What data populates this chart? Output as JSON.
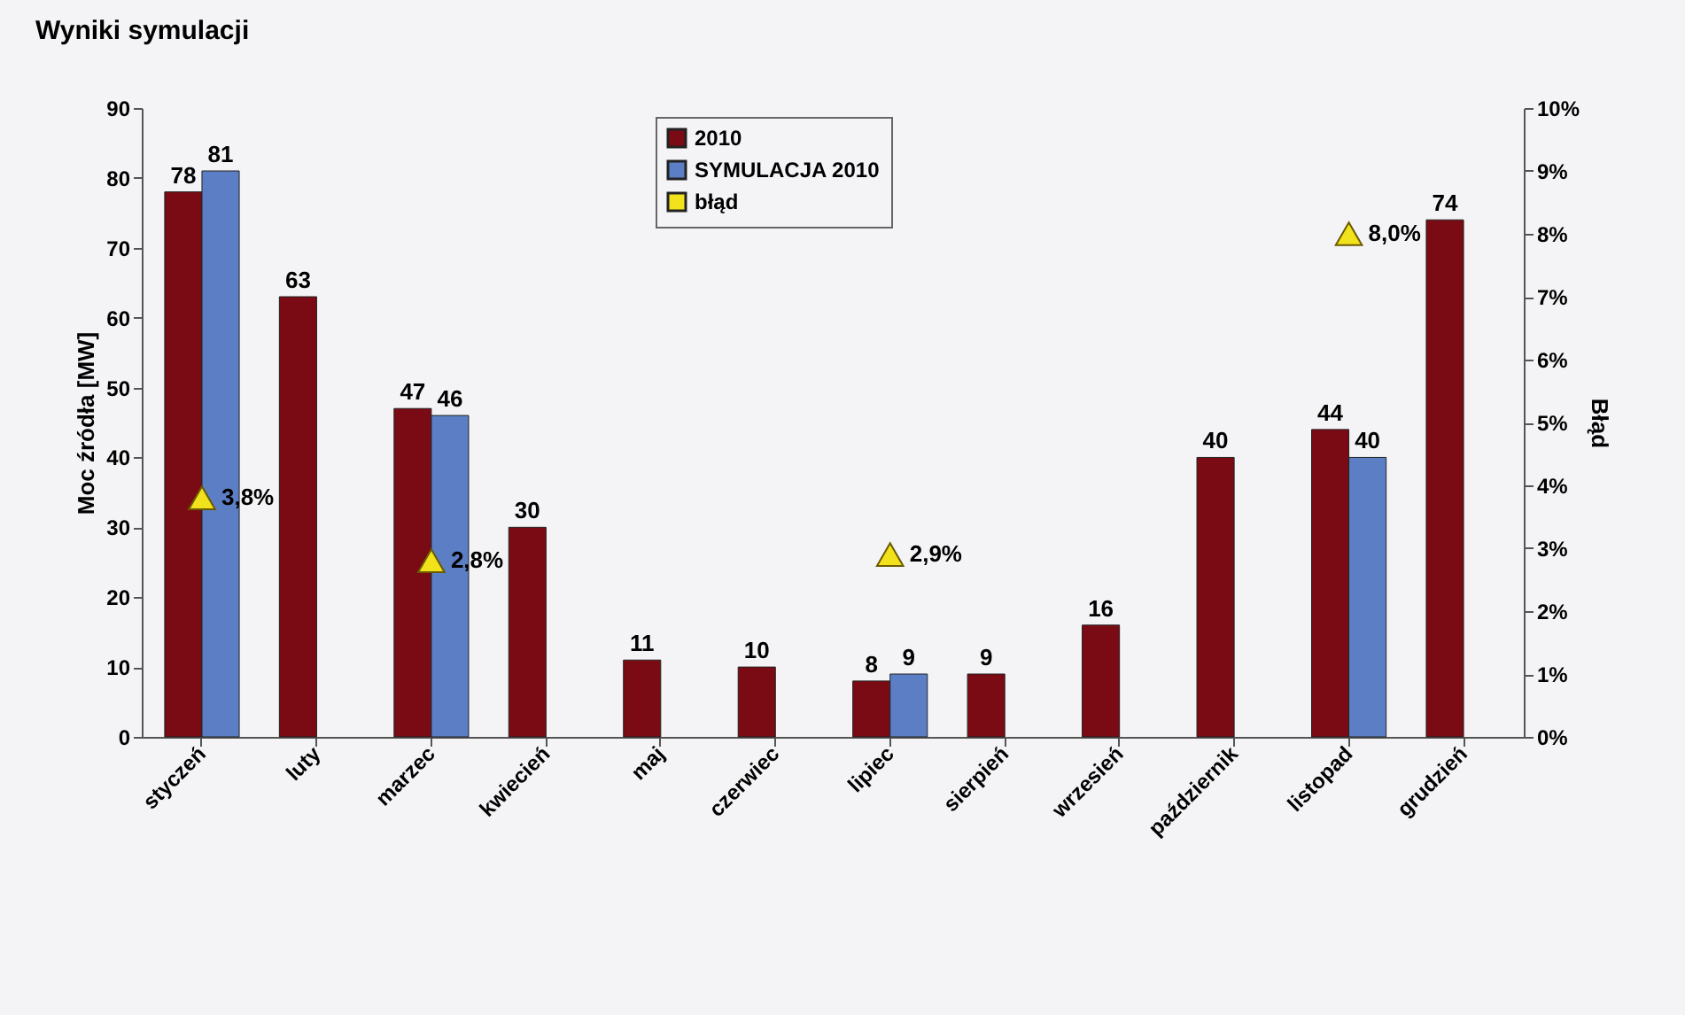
{
  "chart_data": {
    "type": "bar",
    "title": "Wyniki symulacji",
    "ylabel": "Moc źródła [MW]",
    "y2label": "Błąd",
    "categories": [
      "styczeń",
      "luty",
      "marzec",
      "kwiecień",
      "maj",
      "czerwiec",
      "lipiec",
      "sierpień",
      "wrzesień",
      "październik",
      "listopad",
      "grudzień"
    ],
    "series": [
      {
        "name": "2010",
        "color": "#7a0a14",
        "values": [
          78,
          63,
          47,
          30,
          11,
          10,
          8,
          9,
          16,
          40,
          44,
          74
        ]
      },
      {
        "name": "SYMULACJA 2010",
        "color": "#5b7ec4",
        "values": [
          81,
          null,
          46,
          null,
          null,
          null,
          9,
          null,
          null,
          null,
          40,
          null
        ]
      },
      {
        "name": "błąd",
        "type": "scatter",
        "axis": "y2",
        "marker": "triangle",
        "color": "#f2e21c",
        "values": [
          3.8,
          null,
          2.8,
          null,
          null,
          null,
          2.9,
          null,
          null,
          null,
          8.0,
          null
        ],
        "value_labels": [
          "3,8%",
          null,
          "2,8%",
          null,
          null,
          null,
          "2,9%",
          null,
          null,
          null,
          "8,0%",
          null
        ]
      }
    ],
    "data_labels": true,
    "legend": "top",
    "ylim": [
      0,
      90
    ],
    "yticks": [
      0,
      10,
      20,
      30,
      40,
      50,
      60,
      70,
      80,
      90
    ],
    "y2lim": [
      0,
      10
    ],
    "y2ticks": [
      {
        "value": 0,
        "label": "0%"
      },
      {
        "value": 1,
        "label": "1%"
      },
      {
        "value": 2,
        "label": "2%"
      },
      {
        "value": 3,
        "label": "3%"
      },
      {
        "value": 4,
        "label": "4%"
      },
      {
        "value": 5,
        "label": "5%"
      },
      {
        "value": 6,
        "label": "6%"
      },
      {
        "value": 7,
        "label": "7%"
      },
      {
        "value": 8,
        "label": "8%"
      },
      {
        "value": 9,
        "label": "9%"
      },
      {
        "value": 10,
        "label": "10%"
      }
    ]
  }
}
